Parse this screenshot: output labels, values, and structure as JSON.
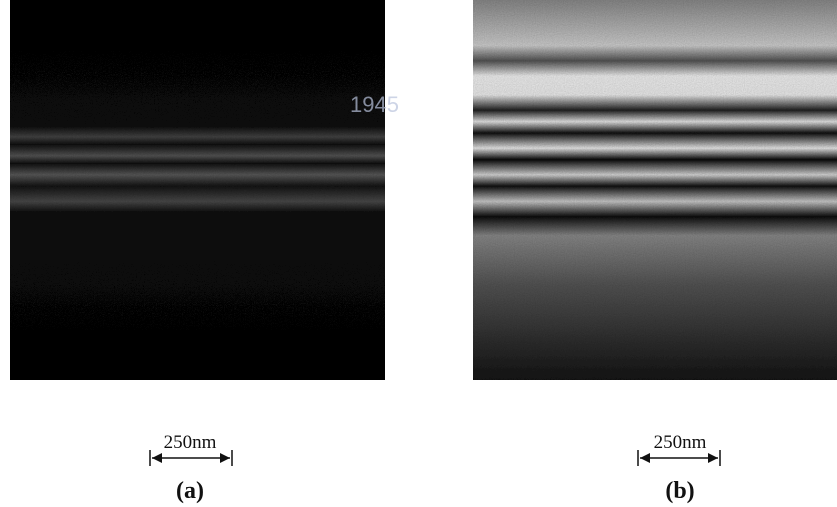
{
  "figure": {
    "panels": [
      {
        "scale_bar": "250nm",
        "label": "(a)"
      },
      {
        "scale_bar": "250nm",
        "label": "(b)"
      }
    ],
    "watermark": "1945"
  }
}
